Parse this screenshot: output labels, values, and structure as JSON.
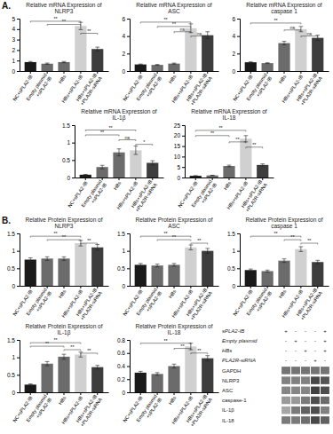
{
  "chart_data": [
    {
      "type": "bar",
      "title": "Relative mRNA Expression of\nNLRP3",
      "categories": [
        "NC+sPLA2-IB",
        "Empty plasmid\n+sPLA2-IB",
        "HBs",
        "HBs+sPLA2-IB",
        "HBs+sPLA2-IB\n+PLA2R-siRNA"
      ],
      "values": [
        0.85,
        0.7,
        0.85,
        4.3,
        2.1
      ],
      "errors": [
        0.06,
        0.06,
        0.06,
        0.35,
        0.18
      ],
      "colors": [
        "#1a1a1a",
        "#6b6b6b",
        "#6b6b6b",
        "#d0d0d0",
        "#3d3d3d"
      ],
      "ylim": [
        0,
        5
      ],
      "yticks": [
        0,
        1,
        2,
        3,
        4,
        5
      ],
      "annotations": [
        {
          "text": "A."
        },
        {
          "from": "NC+sPLA2-IB",
          "to": "HBs+sPLA2-IB",
          "y": 4.75,
          "text": "**"
        },
        {
          "from": "Empty plasmid\n+sPLA2-IB",
          "to": "HBs+sPLA2-IB",
          "y": 4.45,
          "text": "**"
        },
        {
          "from": "HBs+sPLA2-IB",
          "to": "HBs+sPLA2-IB\n+PLA2R-siRNA",
          "y": 3.6,
          "text": "**"
        }
      ]
    },
    {
      "type": "bar",
      "title": "Relative mRNA Expression of\nASC",
      "categories": [
        "NC+sPLA2-IB",
        "Empty plasmid\n+sPLA2-IB",
        "HBs",
        "HBs+sPLA2-IB",
        "HBs+sPLA2-IB\n+PLA2R-siRNA"
      ],
      "values": [
        0.75,
        0.7,
        0.85,
        4.9,
        4.1
      ],
      "errors": [
        0.05,
        0.05,
        0.06,
        0.5,
        0.4
      ],
      "colors": [
        "#1a1a1a",
        "#6b6b6b",
        "#6b6b6b",
        "#d0d0d0",
        "#3d3d3d"
      ],
      "ylim": [
        0,
        6
      ],
      "yticks": [
        0,
        2,
        4,
        6
      ],
      "annotations": [
        {
          "from": "NC+sPLA2-IB",
          "to": "HBs+sPLA2-IB",
          "y": 5.6,
          "text": "**"
        },
        {
          "from": "Empty plasmid\n+sPLA2-IB",
          "to": "HBs+sPLA2-IB",
          "y": 5.1,
          "text": "**"
        },
        {
          "from": "HBs",
          "to": "HBs+sPLA2-IB",
          "y": 4.5,
          "text": "ns"
        },
        {
          "from": "HBs+sPLA2-IB",
          "to": "HBs+sPLA2-IB\n+PLA2R-siRNA",
          "y": 4.0,
          "text": "ns"
        }
      ]
    },
    {
      "type": "bar",
      "title": "Relative mRNA Expression of\ncaspase 1",
      "categories": [
        "NC+sPLA2-IB",
        "Empty plasmid\n+sPLA2-IB",
        "HBs",
        "HBs+sPLA2-IB",
        "HBs+sPLA2-IB\n+PLA2R-siRNA"
      ],
      "values": [
        1.0,
        0.9,
        3.2,
        4.8,
        3.8
      ],
      "errors": [
        0.05,
        0.05,
        0.2,
        0.3,
        0.3
      ],
      "colors": [
        "#1a1a1a",
        "#6b6b6b",
        "#6b6b6b",
        "#d0d0d0",
        "#3d3d3d"
      ],
      "ylim": [
        0,
        6
      ],
      "yticks": [
        0,
        2,
        4,
        6
      ],
      "annotations": [
        {
          "from": "NC+sPLA2-IB",
          "to": "HBs+sPLA2-IB",
          "y": 5.5,
          "text": "**"
        },
        {
          "from": "HBs",
          "to": "HBs+sPLA2-IB",
          "y": 4.7,
          "text": "ns"
        },
        {
          "from": "HBs+sPLA2-IB",
          "to": "HBs+sPLA2-IB\n+PLA2R-siRNA",
          "y": 4.0,
          "text": "ns"
        }
      ]
    },
    {
      "type": "bar",
      "title": "Relative mRNA Expression of\nIL-1β",
      "categories": [
        "NC+sPLA2-IB",
        "Empty plasmid\n+sPLA2-IB",
        "HBs",
        "HBs+sPLA2-IB",
        "HBs+sPLA2-IB\n+PLA2R-siRNA"
      ],
      "values": [
        0.08,
        0.3,
        0.72,
        0.78,
        0.42
      ],
      "errors": [
        0.01,
        0.05,
        0.1,
        0.12,
        0.06
      ],
      "colors": [
        "#1a1a1a",
        "#6b6b6b",
        "#6b6b6b",
        "#d0d0d0",
        "#3d3d3d"
      ],
      "ylim": [
        0,
        1.5
      ],
      "yticks": [
        0,
        0.5,
        1,
        1.5
      ],
      "annotations": [
        {
          "from": "NC+sPLA2-IB",
          "to": "HBs+sPLA2-IB",
          "y": 1.36,
          "text": "**"
        },
        {
          "from": "NC+sPLA2-IB",
          "to": "HBs",
          "y": 1.22,
          "text": "**"
        },
        {
          "from": "HBs",
          "to": "HBs+sPLA2-IB",
          "y": 1.08,
          "text": "ns"
        },
        {
          "from": "HBs+sPLA2-IB",
          "to": "HBs+sPLA2-IB\n+PLA2R-siRNA",
          "y": 0.95,
          "text": "*"
        }
      ]
    },
    {
      "type": "bar",
      "title": "Relative mRNA Expression of\nIL-18",
      "categories": [
        "NC+sPLA2-IB",
        "Empty plasmid\n+sPLA2-IB",
        "HBs",
        "HBs+sPLA2-IB",
        "HBs+sPLA2-IB\n+PLA2R-siRNA"
      ],
      "values": [
        0.8,
        1.0,
        5.5,
        18.5,
        6.0
      ],
      "errors": [
        0.05,
        0.08,
        0.4,
        1.5,
        0.5
      ],
      "colors": [
        "#1a1a1a",
        "#6b6b6b",
        "#6b6b6b",
        "#d0d0d0",
        "#3d3d3d"
      ],
      "ylim": [
        0,
        25
      ],
      "yticks": [
        0,
        5,
        10,
        15,
        20,
        25
      ],
      "annotations": [
        {
          "from": "NC+sPLA2-IB",
          "to": "HBs+sPLA2-IB",
          "y": 22.5,
          "text": "**"
        },
        {
          "from": "NC+sPLA2-IB",
          "to": "HBs",
          "y": 20.0,
          "text": "**"
        },
        {
          "from": "HBs",
          "to": "HBs+sPLA2-IB",
          "y": 17.0,
          "text": "**"
        },
        {
          "from": "HBs+sPLA2-IB",
          "to": "HBs+sPLA2-IB\n+PLA2R-siRNA",
          "y": 14.5,
          "text": "**"
        }
      ]
    },
    {
      "type": "bar",
      "title": "Relative Protein Expression of\nNLRP3",
      "categories": [
        "NC+sPLA2-IB",
        "Empty plasmid\n+sPLA2-IB",
        "HBs",
        "HBs+sPLA2-IB",
        "HBs+sPLA2-IB\n+PLA2R-siRNA"
      ],
      "values": [
        0.75,
        0.78,
        0.78,
        1.22,
        1.1
      ],
      "errors": [
        0.05,
        0.05,
        0.05,
        0.08,
        0.08
      ],
      "colors": [
        "#1a1a1a",
        "#6b6b6b",
        "#6b6b6b",
        "#d0d0d0",
        "#3d3d3d"
      ],
      "ylim": [
        0,
        1.5
      ],
      "yticks": [
        0,
        0.5,
        1,
        1.5
      ],
      "annotations": [
        {
          "text": "B."
        },
        {
          "from": "NC+sPLA2-IB",
          "to": "HBs+sPLA2-IB",
          "y": 1.42,
          "text": "**"
        },
        {
          "from": "Empty plasmid\n+sPLA2-IB",
          "to": "HBs+sPLA2-IB",
          "y": 1.32,
          "text": "**"
        },
        {
          "from": "HBs+sPLA2-IB",
          "to": "HBs+sPLA2-IB\n+PLA2R-siRNA",
          "y": 1.22,
          "text": "**"
        }
      ]
    },
    {
      "type": "bar",
      "title": "Relative Protein Expression of\nASC",
      "categories": [
        "NC+sPLA2-IB",
        "Empty plasmid\n+sPLA2-IB",
        "HBs",
        "HBs+sPLA2-IB",
        "HBs+sPLA2-IB\n+PLA2R-siRNA"
      ],
      "values": [
        0.6,
        0.58,
        0.6,
        1.1,
        1.0
      ],
      "errors": [
        0.04,
        0.04,
        0.04,
        0.07,
        0.07
      ],
      "colors": [
        "#1a1a1a",
        "#6b6b6b",
        "#6b6b6b",
        "#d0d0d0",
        "#3d3d3d"
      ],
      "ylim": [
        0,
        1.5
      ],
      "yticks": [
        0,
        0.5,
        1,
        1.5
      ],
      "annotations": [
        {
          "from": "NC+sPLA2-IB",
          "to": "HBs+sPLA2-IB",
          "y": 1.42,
          "text": "**"
        },
        {
          "from": "Empty plasmid\n+sPLA2-IB",
          "to": "HBs+sPLA2-IB",
          "y": 1.32,
          "text": "**"
        },
        {
          "from": "HBs+sPLA2-IB",
          "to": "HBs+sPLA2-IB\n+PLA2R-siRNA",
          "y": 1.22,
          "text": "**"
        }
      ]
    },
    {
      "type": "bar",
      "title": "Relative Protein Expression of\ncaspase 1",
      "categories": [
        "NC+sPLA2-IB",
        "Empty plasmid\n+sPLA2-IB",
        "HBs",
        "HBs+sPLA2-IB",
        "HBs+sPLA2-IB\n+PLA2R-siRNA"
      ],
      "values": [
        0.45,
        0.42,
        0.72,
        1.05,
        0.68
      ],
      "errors": [
        0.03,
        0.03,
        0.05,
        0.07,
        0.05
      ],
      "colors": [
        "#1a1a1a",
        "#6b6b6b",
        "#6b6b6b",
        "#d0d0d0",
        "#3d3d3d"
      ],
      "ylim": [
        0,
        1.5
      ],
      "yticks": [
        0,
        0.5,
        1,
        1.5
      ],
      "annotations": [
        {
          "from": "NC+sPLA2-IB",
          "to": "HBs+sPLA2-IB",
          "y": 1.42,
          "text": "**"
        },
        {
          "from": "HBs",
          "to": "HBs+sPLA2-IB",
          "y": 1.32,
          "text": "**"
        },
        {
          "from": "HBs+sPLA2-IB",
          "to": "HBs+sPLA2-IB\n+PLA2R-siRNA",
          "y": 1.22,
          "text": "**"
        }
      ]
    },
    {
      "type": "bar",
      "title": "Relative Protein Expression of\nIL-1β",
      "categories": [
        "NC+sPLA2-IB",
        "Empty plasmid\n+sPLA2-IB",
        "HBs",
        "HBs+sPLA2-IB",
        "HBs+sPLA2-IB\n+PLA2R-siRNA"
      ],
      "values": [
        0.22,
        0.82,
        1.02,
        1.08,
        0.72
      ],
      "errors": [
        0.02,
        0.06,
        0.07,
        0.07,
        0.05
      ],
      "colors": [
        "#1a1a1a",
        "#6b6b6b",
        "#6b6b6b",
        "#d0d0d0",
        "#3d3d3d"
      ],
      "ylim": [
        0,
        1.5
      ],
      "yticks": [
        0,
        0.5,
        1,
        1.5
      ],
      "annotations": [
        {
          "from": "NC+sPLA2-IB",
          "to": "HBs+sPLA2-IB",
          "y": 1.42,
          "text": "**"
        },
        {
          "from": "NC+sPLA2-IB",
          "to": "HBs",
          "y": 1.32,
          "text": "**"
        },
        {
          "from": "HBs",
          "to": "HBs+sPLA2-IB",
          "y": 1.22,
          "text": "**"
        },
        {
          "from": "HBs+sPLA2-IB",
          "to": "HBs+sPLA2-IB\n+PLA2R-siRNA",
          "y": 1.12,
          "text": "**"
        }
      ]
    },
    {
      "type": "bar",
      "title": "Relative Protein Expression of\nIL-18",
      "categories": [
        "NC+sPLA2-IB",
        "Empty plasmid\n+sPLA2-IB",
        "HBs",
        "HBs+sPLA2-IB",
        "HBs+sPLA2-IB\n+PLA2R-siRNA"
      ],
      "values": [
        0.3,
        0.28,
        0.4,
        0.7,
        0.52
      ],
      "errors": [
        0.02,
        0.02,
        0.03,
        0.05,
        0.04
      ],
      "colors": [
        "#1a1a1a",
        "#6b6b6b",
        "#6b6b6b",
        "#d0d0d0",
        "#3d3d3d"
      ],
      "ylim": [
        0,
        0.8
      ],
      "yticks": [
        0,
        0.2,
        0.4,
        0.6,
        0.8
      ],
      "annotations": [
        {
          "from": "NC+sPLA2-IB",
          "to": "HBs+sPLA2-IB",
          "y": 0.75,
          "text": "**"
        },
        {
          "from": "HBs",
          "to": "HBs+sPLA2-IB",
          "y": 0.67,
          "text": "**"
        },
        {
          "from": "HBs+sPLA2-IB",
          "to": "HBs+sPLA2-IB\n+PLA2R-siRNA",
          "y": 0.6,
          "text": "**"
        }
      ]
    },
    {
      "type": "heatmap",
      "categories": [
        "sPLA2-IB",
        "Empty plasmid",
        "HBs",
        "PLA2R-siRNA",
        "GAPDH",
        "NLRP3",
        "ASC",
        "caspase-1",
        "IL-1β",
        "IL-18"
      ],
      "cell_labels": [
        [
          "+",
          "-",
          "-",
          "-",
          "+"
        ],
        [
          "-",
          "+",
          "-",
          "-",
          "+"
        ],
        [
          "-",
          "-",
          "+",
          "-",
          "+"
        ],
        [
          "-",
          "-",
          "-",
          "+",
          "-"
        ],
        null,
        null,
        null,
        null,
        null,
        null
      ],
      "cells": [
        null,
        null,
        null,
        null,
        [
          0.45,
          0.45,
          0.45,
          0.45,
          0.45
        ],
        [
          0.5,
          0.5,
          0.5,
          0.28,
          0.33
        ],
        [
          0.52,
          0.52,
          0.52,
          0.25,
          0.3
        ],
        [
          0.6,
          0.6,
          0.48,
          0.3,
          0.42
        ],
        [
          0.65,
          0.48,
          0.38,
          0.3,
          0.5
        ],
        [
          0.48,
          0.48,
          0.43,
          0.28,
          0.38
        ]
      ]
    }
  ]
}
